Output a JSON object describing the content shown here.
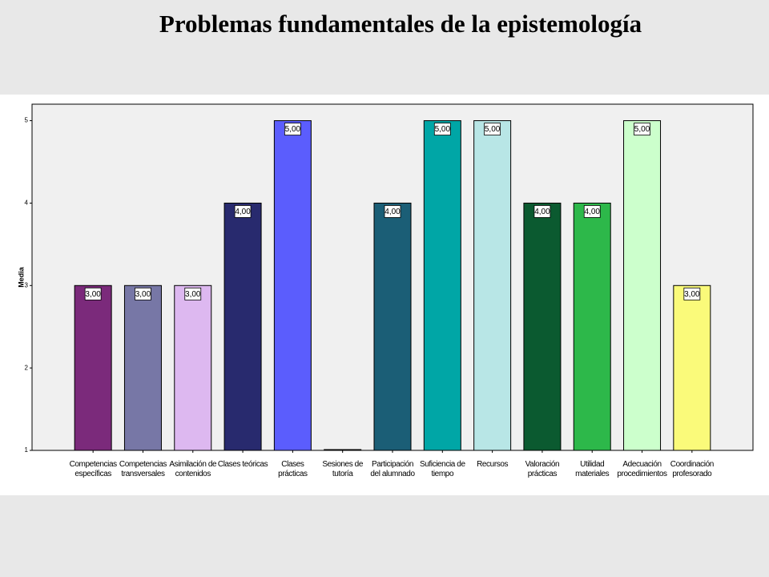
{
  "chart_data": {
    "type": "bar",
    "title": "Problemas fundamentales de la epistemología",
    "y_label": "Media",
    "categories": [
      "Competencias\nespecíficas",
      "Competencias\ntransversales",
      "Asimilación de\ncontenidos",
      "Clases teóricas",
      "Clases\nprácticas",
      "Sesiones de\ntutoría",
      "Participación\ndel alumnado",
      "Suficiencia de\ntiempo",
      "Recursos",
      "Valoración\nprácticas",
      "Utilidad\nmateriales",
      "Adecuación\nprocedimientos",
      "Coordinación\nprofesorado"
    ],
    "values": [
      3,
      3,
      3,
      4,
      5,
      1,
      4,
      5,
      5,
      4,
      4,
      5,
      3
    ],
    "value_labels": [
      "3,00",
      "3,00",
      "3,00",
      "4,00",
      "5,00",
      null,
      "4,00",
      "5,00",
      "5,00",
      "4,00",
      "4,00",
      "5,00",
      "3,00"
    ],
    "colors": [
      "#7b2a7b",
      "#7777a6",
      "#ddb8f0",
      "#282a6e",
      "#5b5dfd",
      "#888888",
      "#1b5e76",
      "#00a6a6",
      "#b8e6e6",
      "#0b5a30",
      "#2db84a",
      "#ccffcc",
      "#fafa7a"
    ],
    "ylim": [
      1,
      5.2
    ],
    "yticks": [
      1,
      2,
      3,
      4,
      5
    ]
  }
}
